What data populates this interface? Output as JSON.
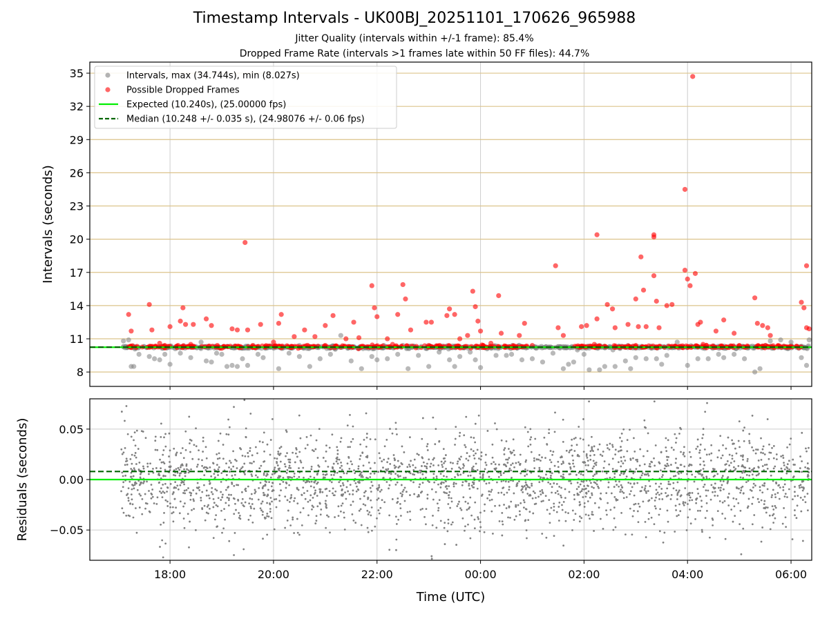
{
  "chart_data": [
    {
      "type": "scatter",
      "panel": "top",
      "title": "Timestamp Intervals - UK00BJ_20251101_170626_965988",
      "subtitles": [
        "Jitter Quality (intervals within +/-1 frame): 85.4%",
        "Dropped Frame Rate (intervals >1 frames late within 50 FF files): 44.7%"
      ],
      "ylabel": "Intervals (seconds)",
      "xlabel": "",
      "xlim_hours": [
        16.45,
        30.4
      ],
      "ylim": [
        6.7,
        36.0
      ],
      "yticks": [
        8,
        11,
        14,
        17,
        20,
        23,
        26,
        29,
        32,
        35
      ],
      "ytick_labels": [
        "8",
        "11",
        "14",
        "17",
        "20",
        "23",
        "26",
        "29",
        "32",
        "35"
      ],
      "legend_position": "top-left",
      "legend": [
        {
          "label": "Intervals, max (34.744s), min (8.027s)",
          "marker": "circle",
          "color": "#808080"
        },
        {
          "label": "Possible Dropped Frames",
          "marker": "circle",
          "color": "#ff0000"
        },
        {
          "label": "Expected (10.240s), (25.00000 fps)",
          "marker": "line",
          "color": "#00ee00"
        },
        {
          "label": "Median (10.248 +/- 0.035 s), (24.98076 +/- 0.06 fps)",
          "marker": "dashed-line",
          "color": "#006400"
        }
      ],
      "expected_line": 10.24,
      "median_line": 10.248,
      "data_range_hours": [
        17.05,
        30.35
      ],
      "series": [
        {
          "name": "Intervals",
          "color": "#808080",
          "points": [
            [
              17.1,
              10.8
            ],
            [
              17.2,
              10.9
            ],
            [
              17.25,
              8.5
            ],
            [
              17.3,
              8.5
            ],
            [
              17.4,
              9.6
            ],
            [
              17.6,
              9.4
            ],
            [
              17.7,
              9.2
            ],
            [
              17.8,
              9.1
            ],
            [
              17.9,
              9.6
            ],
            [
              18.0,
              8.7
            ],
            [
              18.1,
              10.1
            ],
            [
              18.2,
              9.7
            ],
            [
              18.4,
              9.3
            ],
            [
              18.6,
              10.7
            ],
            [
              18.7,
              9.0
            ],
            [
              18.8,
              8.9
            ],
            [
              18.9,
              9.7
            ],
            [
              19.0,
              9.6
            ],
            [
              19.1,
              8.5
            ],
            [
              19.2,
              8.6
            ],
            [
              19.3,
              8.5
            ],
            [
              19.4,
              9.2
            ],
            [
              19.5,
              8.6
            ],
            [
              19.7,
              9.6
            ],
            [
              19.8,
              9.3
            ],
            [
              20.1,
              8.3
            ],
            [
              20.3,
              9.7
            ],
            [
              20.5,
              9.4
            ],
            [
              20.7,
              8.5
            ],
            [
              20.9,
              9.2
            ],
            [
              21.1,
              9.6
            ],
            [
              21.3,
              11.3
            ],
            [
              21.5,
              9.0
            ],
            [
              21.7,
              8.3
            ],
            [
              21.9,
              9.4
            ],
            [
              22.0,
              9.1
            ],
            [
              22.2,
              9.2
            ],
            [
              22.4,
              9.6
            ],
            [
              22.6,
              8.3
            ],
            [
              22.8,
              9.5
            ],
            [
              23.0,
              8.5
            ],
            [
              23.2,
              9.8
            ],
            [
              23.4,
              9.1
            ],
            [
              23.5,
              8.5
            ],
            [
              23.6,
              9.4
            ],
            [
              23.8,
              9.8
            ],
            [
              23.9,
              9.1
            ],
            [
              24.0,
              8.4
            ],
            [
              24.3,
              9.5
            ],
            [
              24.5,
              9.5
            ],
            [
              24.6,
              9.6
            ],
            [
              24.8,
              9.1
            ],
            [
              25.0,
              9.2
            ],
            [
              25.2,
              8.9
            ],
            [
              25.4,
              9.7
            ],
            [
              25.6,
              8.3
            ],
            [
              25.7,
              8.7
            ],
            [
              25.8,
              8.9
            ],
            [
              26.0,
              9.6
            ],
            [
              26.1,
              8.2
            ],
            [
              26.3,
              8.2
            ],
            [
              26.4,
              8.5
            ],
            [
              26.6,
              8.5
            ],
            [
              26.8,
              9.0
            ],
            [
              26.9,
              8.3
            ],
            [
              27.0,
              9.3
            ],
            [
              27.2,
              9.2
            ],
            [
              27.4,
              9.2
            ],
            [
              27.5,
              8.7
            ],
            [
              27.6,
              9.5
            ],
            [
              27.8,
              10.7
            ],
            [
              28.0,
              8.6
            ],
            [
              28.2,
              9.2
            ],
            [
              28.4,
              9.2
            ],
            [
              28.6,
              9.6
            ],
            [
              28.7,
              9.3
            ],
            [
              28.9,
              9.6
            ],
            [
              29.1,
              9.2
            ],
            [
              29.3,
              8.0
            ],
            [
              29.4,
              8.3
            ],
            [
              29.6,
              10.8
            ],
            [
              29.8,
              10.9
            ],
            [
              30.0,
              10.7
            ],
            [
              30.2,
              9.3
            ],
            [
              30.3,
              8.6
            ],
            [
              30.35,
              10.9
            ],
            [
              17.5,
              10.3
            ],
            [
              18.5,
              10.3
            ],
            [
              19.5,
              10.3
            ],
            [
              20.5,
              10.4
            ],
            [
              21.5,
              10.3
            ],
            [
              22.5,
              10.4
            ],
            [
              23.5,
              10.3
            ],
            [
              24.5,
              10.3
            ],
            [
              25.5,
              10.3
            ],
            [
              26.5,
              10.3
            ],
            [
              27.5,
              10.3
            ],
            [
              28.5,
              10.3
            ],
            [
              29.5,
              10.3
            ]
          ]
        },
        {
          "name": "Possible Dropped Frames",
          "color": "#ff0000",
          "points": [
            [
              17.2,
              13.2
            ],
            [
              17.25,
              11.7
            ],
            [
              17.6,
              14.1
            ],
            [
              17.65,
              11.8
            ],
            [
              17.8,
              10.6
            ],
            [
              18.0,
              12.1
            ],
            [
              18.2,
              12.6
            ],
            [
              18.25,
              13.8
            ],
            [
              18.3,
              12.3
            ],
            [
              18.45,
              12.3
            ],
            [
              18.7,
              12.8
            ],
            [
              18.8,
              12.2
            ],
            [
              19.2,
              11.9
            ],
            [
              19.3,
              11.8
            ],
            [
              19.45,
              19.7
            ],
            [
              19.5,
              11.8
            ],
            [
              19.75,
              12.3
            ],
            [
              20.1,
              12.4
            ],
            [
              20.15,
              13.2
            ],
            [
              20.4,
              11.2
            ],
            [
              20.6,
              11.8
            ],
            [
              20.8,
              11.2
            ],
            [
              21.0,
              12.2
            ],
            [
              21.15,
              13.1
            ],
            [
              21.4,
              11.0
            ],
            [
              21.55,
              12.5
            ],
            [
              21.65,
              11.1
            ],
            [
              21.9,
              15.8
            ],
            [
              21.95,
              13.8
            ],
            [
              22.0,
              13.0
            ],
            [
              22.2,
              11.0
            ],
            [
              22.4,
              13.2
            ],
            [
              22.5,
              15.9
            ],
            [
              22.55,
              14.6
            ],
            [
              22.65,
              11.8
            ],
            [
              22.95,
              12.5
            ],
            [
              23.05,
              12.5
            ],
            [
              23.35,
              13.1
            ],
            [
              23.4,
              13.7
            ],
            [
              23.5,
              13.2
            ],
            [
              23.6,
              11.0
            ],
            [
              23.75,
              11.3
            ],
            [
              23.85,
              15.3
            ],
            [
              23.9,
              13.9
            ],
            [
              23.95,
              12.6
            ],
            [
              24.0,
              11.7
            ],
            [
              24.35,
              14.9
            ],
            [
              24.4,
              11.5
            ],
            [
              24.75,
              11.3
            ],
            [
              24.85,
              12.4
            ],
            [
              25.45,
              17.6
            ],
            [
              25.5,
              12.0
            ],
            [
              25.6,
              11.3
            ],
            [
              25.95,
              12.1
            ],
            [
              26.05,
              12.2
            ],
            [
              26.25,
              20.4
            ],
            [
              26.25,
              12.8
            ],
            [
              26.45,
              14.1
            ],
            [
              26.55,
              13.7
            ],
            [
              26.6,
              12.0
            ],
            [
              26.85,
              12.3
            ],
            [
              27.0,
              14.6
            ],
            [
              27.05,
              12.1
            ],
            [
              27.1,
              18.4
            ],
            [
              27.15,
              15.4
            ],
            [
              27.2,
              12.1
            ],
            [
              27.35,
              20.4
            ],
            [
              27.35,
              20.2
            ],
            [
              27.35,
              16.7
            ],
            [
              27.4,
              14.4
            ],
            [
              27.45,
              12.0
            ],
            [
              27.6,
              14.0
            ],
            [
              27.7,
              14.1
            ],
            [
              27.95,
              24.5
            ],
            [
              27.95,
              17.2
            ],
            [
              28.0,
              16.4
            ],
            [
              28.05,
              15.8
            ],
            [
              28.1,
              34.7
            ],
            [
              28.15,
              16.9
            ],
            [
              28.2,
              12.3
            ],
            [
              28.25,
              12.5
            ],
            [
              28.55,
              11.7
            ],
            [
              28.7,
              12.7
            ],
            [
              28.9,
              11.5
            ],
            [
              29.3,
              14.7
            ],
            [
              29.35,
              12.4
            ],
            [
              29.45,
              12.2
            ],
            [
              29.55,
              12.0
            ],
            [
              29.6,
              11.3
            ],
            [
              30.2,
              14.3
            ],
            [
              30.25,
              13.8
            ],
            [
              30.3,
              17.6
            ],
            [
              30.3,
              12.0
            ],
            [
              30.35,
              11.9
            ],
            [
              17.9,
              10.4
            ],
            [
              18.4,
              10.5
            ],
            [
              19.6,
              10.4
            ],
            [
              20.0,
              10.7
            ],
            [
              21.0,
              10.4
            ],
            [
              22.3,
              10.5
            ],
            [
              23.0,
              10.4
            ],
            [
              24.2,
              10.6
            ],
            [
              25.0,
              10.4
            ],
            [
              26.2,
              10.5
            ],
            [
              27.0,
              10.4
            ],
            [
              28.3,
              10.5
            ],
            [
              29.0,
              10.4
            ]
          ]
        }
      ]
    },
    {
      "type": "scatter",
      "panel": "bottom",
      "ylabel": "Residuals (seconds)",
      "xlabel": "Time (UTC)",
      "xlim_hours": [
        16.45,
        30.4
      ],
      "ylim": [
        -0.08,
        0.08
      ],
      "yticks": [
        0.05,
        0.0,
        -0.05
      ],
      "ytick_labels": [
        "0.05",
        "0.00",
        "−0.05"
      ],
      "xticks_hours": [
        18,
        20,
        22,
        24,
        26,
        28,
        30
      ],
      "xtick_labels": [
        "18:00",
        "20:00",
        "22:00",
        "00:00",
        "02:00",
        "04:00",
        "06:00"
      ],
      "expected_line": 0.0,
      "median_line": 0.008,
      "residual_spread_sigma": 0.025,
      "residual_point_count": 2400,
      "residual_color": "#808080"
    }
  ]
}
